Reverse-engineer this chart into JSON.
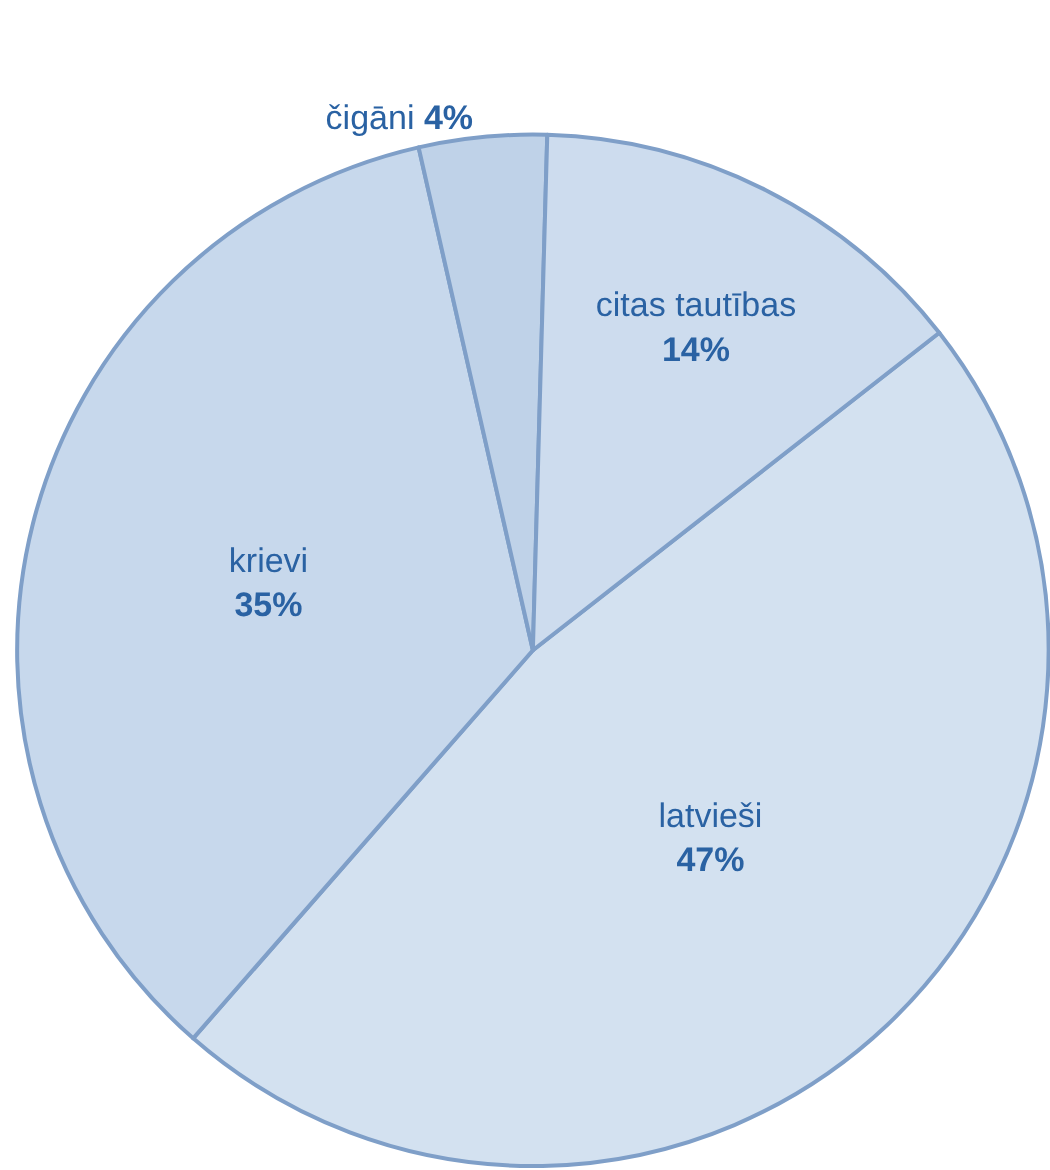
{
  "chart_data": {
    "type": "pie",
    "categories": [
      "latvieši",
      "krievi",
      "čigāni",
      "citas tautības"
    ],
    "values": [
      47,
      35,
      4,
      14
    ],
    "value_labels": [
      "47%",
      "35%",
      "4%",
      "14%"
    ],
    "colors": [
      "#d3e1f0",
      "#c7d8ec",
      "#bfd2e8",
      "#cddcee"
    ]
  }
}
